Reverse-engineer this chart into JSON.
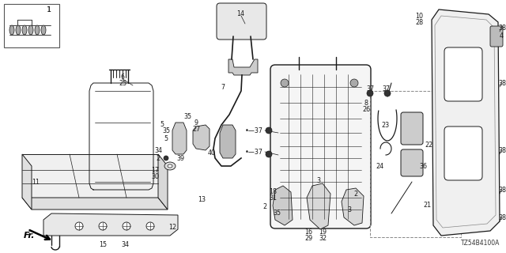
{
  "diagram_code": "TZ54B4100A",
  "bg_color": "#ffffff",
  "line_color": "#1a1a1a",
  "text_color": "#1a1a1a",
  "figsize": [
    6.4,
    3.2
  ],
  "dpi": 100
}
